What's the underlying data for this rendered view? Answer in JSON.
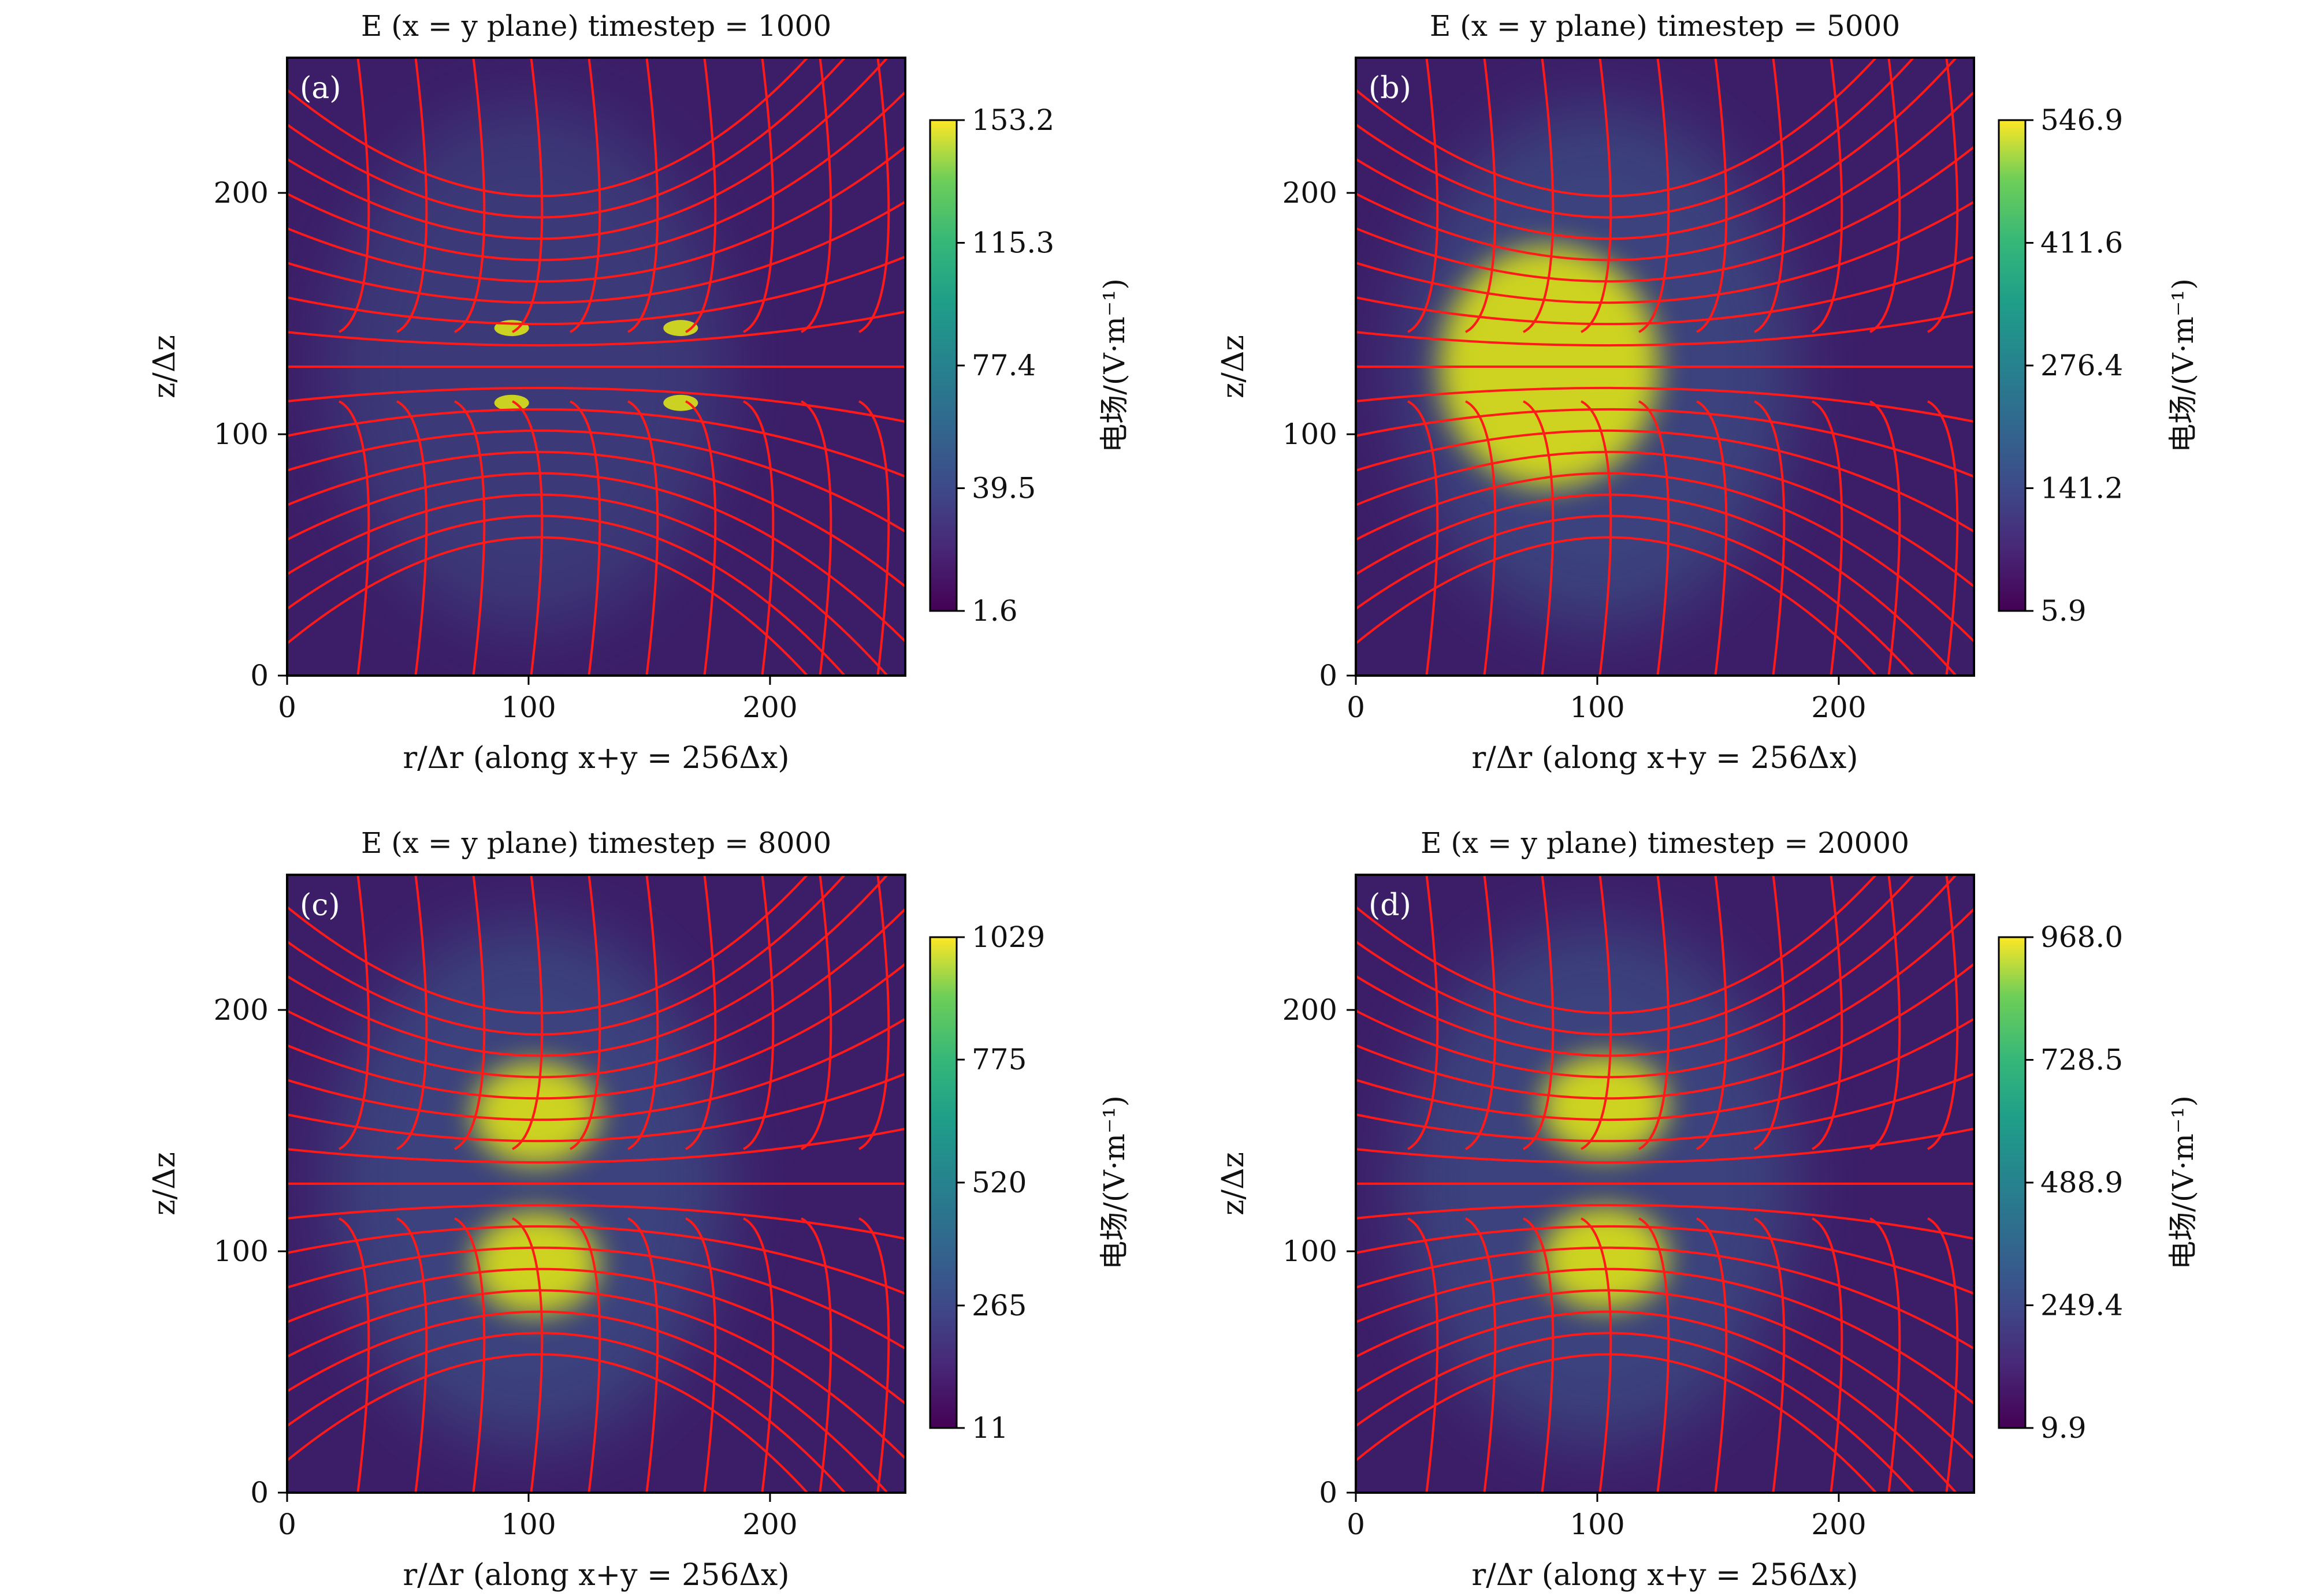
{
  "chart_data": [
    {
      "type": "heatmap",
      "panel_label": "(a)",
      "title": "E (x = y plane) timestep = 1000",
      "xlabel": "r/Δr (along x+y = 256Δx)",
      "ylabel": "z/Δz",
      "xlim": [
        0,
        256
      ],
      "ylim": [
        0,
        256
      ],
      "xticks": [
        "0",
        "100",
        "200"
      ],
      "yticks": [
        "0",
        "100",
        "200"
      ],
      "colorbar": {
        "label": "电场/(V·m⁻¹)",
        "min": 1.6,
        "max": 153.2,
        "ticks": [
          "1.6",
          "39.5",
          "77.4",
          "115.3",
          "153.2"
        ],
        "colormap": "viridis"
      },
      "field_hotspots": [
        {
          "r": 93,
          "z": 144,
          "value": 150
        },
        {
          "r": 93,
          "z": 113,
          "value": 150
        },
        {
          "r": 163,
          "z": 144,
          "value": 140
        },
        {
          "r": 163,
          "z": 113,
          "value": 140
        }
      ],
      "streamline_color": "#ff1a1a"
    },
    {
      "type": "heatmap",
      "panel_label": "(b)",
      "title": "E (x = y plane) timestep = 5000",
      "xlabel": "r/Δr (along x+y = 256Δx)",
      "ylabel": "z/Δz",
      "xlim": [
        0,
        256
      ],
      "ylim": [
        0,
        256
      ],
      "xticks": [
        "0",
        "100",
        "200"
      ],
      "yticks": [
        "0",
        "100",
        "200"
      ],
      "colorbar": {
        "label": "电场/(V·m⁻¹)",
        "min": 5.9,
        "max": 546.9,
        "ticks": [
          "5.9",
          "141.2",
          "276.4",
          "411.6",
          "546.9"
        ],
        "colormap": "viridis"
      },
      "field_hotspots": [
        {
          "r": 80,
          "z": 128,
          "value": 546
        }
      ],
      "streamline_color": "#ff1a1a"
    },
    {
      "type": "heatmap",
      "panel_label": "(c)",
      "title": "E (x = y plane) timestep = 8000",
      "xlabel": "r/Δr (along x+y = 256Δx)",
      "ylabel": "z/Δz",
      "xlim": [
        0,
        256
      ],
      "ylim": [
        0,
        256
      ],
      "xticks": [
        "0",
        "100",
        "200"
      ],
      "yticks": [
        "0",
        "100",
        "200"
      ],
      "colorbar": {
        "label": "电场/(V·m⁻¹)",
        "min": 11,
        "max": 1029,
        "ticks": [
          "11",
          "265",
          "520",
          "775",
          "1029"
        ],
        "colormap": "viridis"
      },
      "field_hotspots": [
        {
          "r": 103,
          "z": 157,
          "value": 1000
        },
        {
          "r": 103,
          "z": 95,
          "value": 1000
        }
      ],
      "streamline_color": "#ff1a1a"
    },
    {
      "type": "heatmap",
      "panel_label": "(d)",
      "title": "E (x = y plane) timestep = 20000",
      "xlabel": "r/Δr (along x+y = 256Δx)",
      "ylabel": "z/Δz",
      "xlim": [
        0,
        256
      ],
      "ylim": [
        0,
        256
      ],
      "xticks": [
        "0",
        "100",
        "200"
      ],
      "yticks": [
        "0",
        "100",
        "200"
      ],
      "colorbar": {
        "label": "电场/(V·m⁻¹)",
        "min": 9.9,
        "max": 968.0,
        "ticks": [
          "9.9",
          "249.4",
          "488.9",
          "728.5",
          "968.0"
        ],
        "colormap": "viridis"
      },
      "field_hotspots": [
        {
          "r": 103,
          "z": 160,
          "value": 968
        },
        {
          "r": 103,
          "z": 97,
          "value": 968
        }
      ],
      "streamline_color": "#ff1a1a"
    }
  ]
}
